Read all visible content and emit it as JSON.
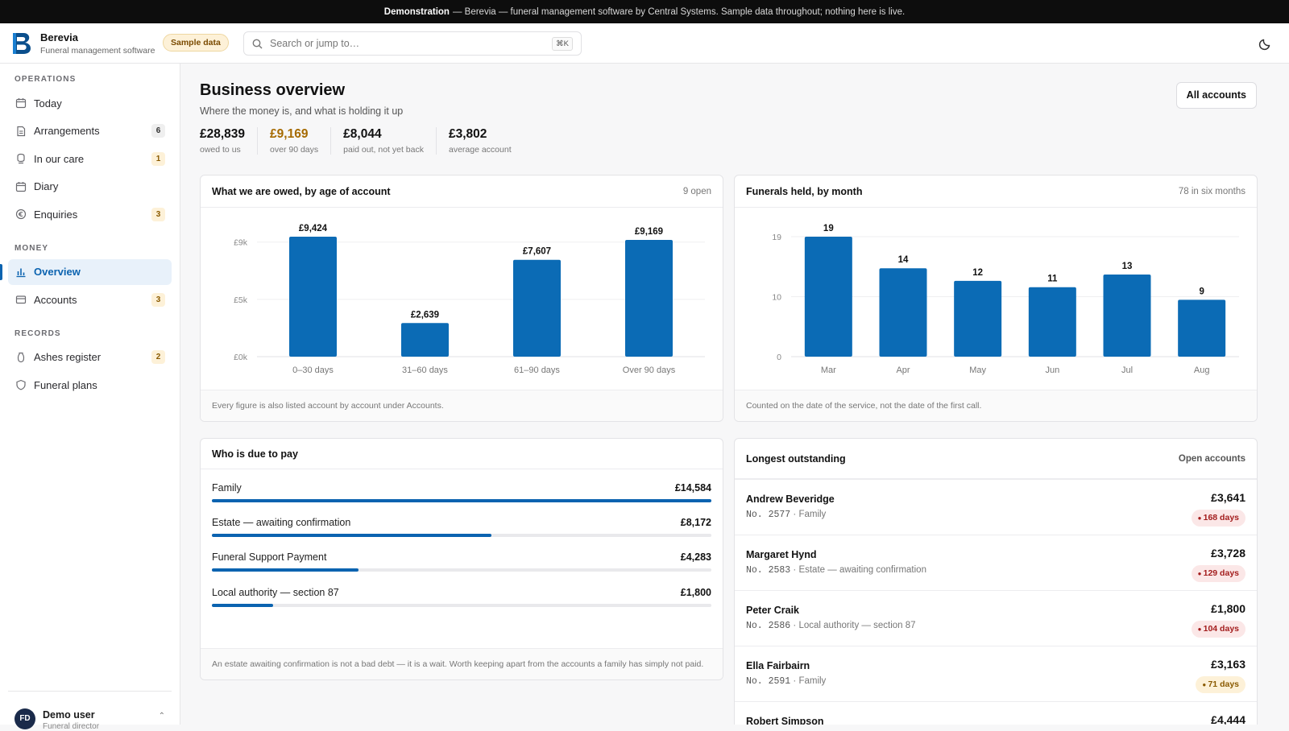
{
  "banner": {
    "bold": "Demonstration",
    "text": "— Berevia — funeral management software by Central Systems. Sample data throughout; nothing here is live."
  },
  "topbar": {
    "app_name": "Berevia",
    "app_sub": "Funeral management software",
    "sample_badge": "Sample data",
    "search_placeholder": "Search or jump to…",
    "search_shortcut": "⌘K",
    "theme_icon": "moon-icon"
  },
  "sidebar": {
    "sections": [
      {
        "label": "OPERATIONS"
      },
      {
        "label": "MONEY"
      },
      {
        "label": "RECORDS"
      }
    ],
    "items": [
      {
        "label": "Today",
        "icon": "calendar-icon"
      },
      {
        "label": "Arrangements",
        "icon": "document-icon",
        "badge": "6"
      },
      {
        "label": "In our care",
        "icon": "care-icon",
        "badge": "1"
      },
      {
        "label": "Diary",
        "icon": "calendar-icon"
      },
      {
        "label": "Enquiries",
        "icon": "euro-icon",
        "badge": "3"
      },
      {
        "label": "Overview",
        "icon": "bar-chart-icon"
      },
      {
        "label": "Accounts",
        "icon": "card-icon",
        "badge": "3"
      },
      {
        "label": "Ashes register",
        "icon": "urn-icon",
        "badge": "2"
      },
      {
        "label": "Funeral plans",
        "icon": "shield-icon"
      }
    ],
    "user": {
      "initials": "FD",
      "name": "Demo user",
      "sub": "Funeral director"
    }
  },
  "page": {
    "title": "Business overview",
    "subtitle": "Where the money is, and what is holding it up",
    "all_accounts": "All accounts"
  },
  "kpis": [
    {
      "value": "£28,839",
      "label": "owed to us"
    },
    {
      "value": "£9,169",
      "label": "over 90 days"
    },
    {
      "value": "£8,044",
      "label": "paid out, not yet back"
    },
    {
      "value": "£3,802",
      "label": "average account"
    }
  ],
  "chart_owed": {
    "title": "What we are owed, by age of account",
    "meta": "9 open",
    "footer": "Every figure is also listed account by account under Accounts."
  },
  "chart_funerals": {
    "title": "Funerals held, by month",
    "meta": "78 in six months",
    "footer": "Counted on the date of the service, not the date of the first call."
  },
  "chart_data": [
    {
      "type": "bar",
      "title": "What we are owed, by age of account",
      "categories": [
        "0–30 days",
        "31–60 days",
        "61–90 days",
        "Over 90 days"
      ],
      "values": [
        9424,
        2639,
        7607,
        9169
      ],
      "value_labels": [
        "£9,424",
        "£2,639",
        "£7,607",
        "£9,169"
      ],
      "ylim": [
        0,
        9424
      ],
      "yticks": [
        {
          "value": 0,
          "label": "£0k"
        },
        {
          "value": 4500,
          "label": "£5k"
        },
        {
          "value": 9000,
          "label": "£9k"
        }
      ],
      "color": "#0b6bb5",
      "grid": true
    },
    {
      "type": "bar",
      "title": "Funerals held, by month",
      "categories": [
        "Mar",
        "Apr",
        "May",
        "Jun",
        "Jul",
        "Aug"
      ],
      "values": [
        19,
        14,
        12,
        11,
        13,
        9
      ],
      "value_labels": [
        "19",
        "14",
        "12",
        "11",
        "13",
        "9"
      ],
      "ylim": [
        0,
        19
      ],
      "yticks": [
        {
          "value": 0,
          "label": "0"
        },
        {
          "value": 9.5,
          "label": "10"
        },
        {
          "value": 19,
          "label": "19"
        }
      ],
      "color": "#0b6bb5",
      "grid": true
    }
  ],
  "due": {
    "title": "Who is due to pay",
    "rows": [
      {
        "label": "Family",
        "amount": "£14,584",
        "fraction": 1.0
      },
      {
        "label": "Estate — awaiting confirmation",
        "amount": "£8,172",
        "fraction": 0.56
      },
      {
        "label": "Funeral Support Payment",
        "amount": "£4,283",
        "fraction": 0.294
      },
      {
        "label": "Local authority — section 87",
        "amount": "£1,800",
        "fraction": 0.123
      }
    ],
    "footer": "An estate awaiting confirmation is not a bad debt — it is a wait. Worth keeping apart from the accounts a family has simply not paid."
  },
  "longest": {
    "title": "Longest outstanding",
    "meta": "Open accounts",
    "rows": [
      {
        "name": "Andrew Beveridge",
        "no": "No. 2577",
        "type": "· Family",
        "amount": "£3,641",
        "days": "168 days",
        "status": "red"
      },
      {
        "name": "Margaret Hynd",
        "no": "No. 2583",
        "type": "· Estate — awaiting confirmation",
        "amount": "£3,728",
        "days": "129 days",
        "status": "red"
      },
      {
        "name": "Peter Craik",
        "no": "No. 2586",
        "type": "· Local authority — section 87",
        "amount": "£1,800",
        "days": "104 days",
        "status": "red"
      },
      {
        "name": "Ella Fairbairn",
        "no": "No. 2591",
        "type": "· Family",
        "amount": "£3,163",
        "days": "71 days",
        "status": "amber"
      },
      {
        "name": "Robert Simpson",
        "no": "",
        "type": "",
        "amount": "£4,444",
        "days": "",
        "status": "red"
      }
    ]
  }
}
